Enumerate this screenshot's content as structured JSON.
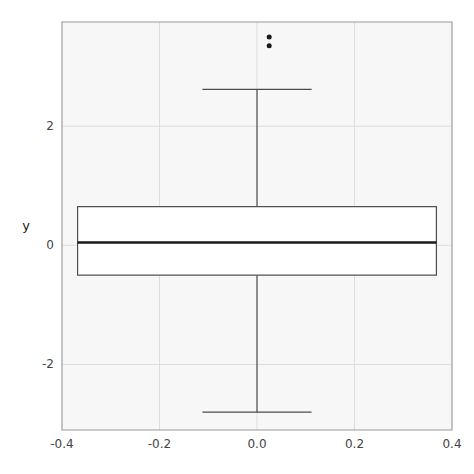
{
  "chart_data": {
    "type": "box",
    "ylabel": "y",
    "xlim": [
      -0.4,
      0.4
    ],
    "ylim": [
      -3.1,
      3.75
    ],
    "xticks": [
      -0.4,
      -0.2,
      {
        "value": 0.0,
        "label": "0.0"
      },
      0.2,
      0.4
    ],
    "yticks": [
      -2,
      0,
      2
    ],
    "grid": true,
    "color": "#4D4D4D",
    "boxes": [
      {
        "x": 0.0,
        "q1": -0.5,
        "median": 0.05,
        "q3": 0.65,
        "whisker_low": -2.8,
        "whisker_high": 2.62
      }
    ],
    "outliers": {
      "x": [
        0.025,
        0.025
      ],
      "y": [
        3.5,
        3.35
      ]
    }
  }
}
